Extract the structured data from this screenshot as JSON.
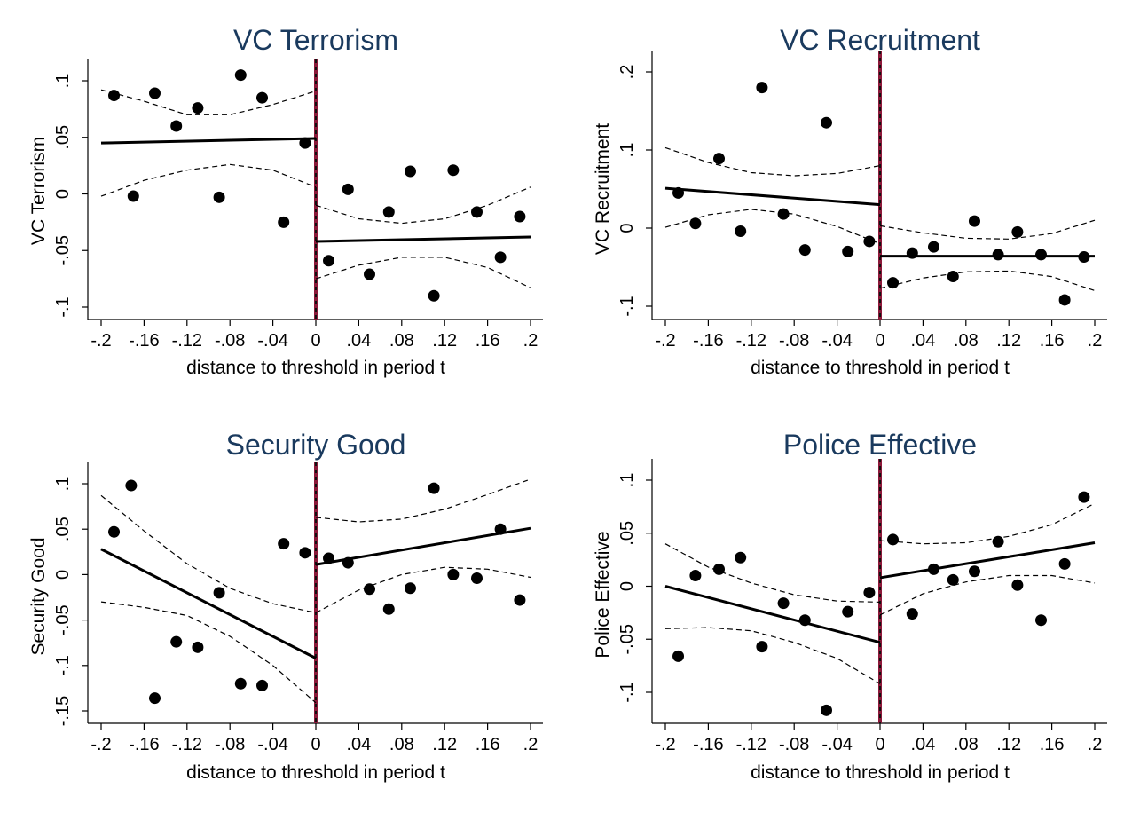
{
  "chart_data": [
    {
      "type": "scatter",
      "title": "VC Terrorism",
      "xlabel": "distance to threshold in period t",
      "ylabel": "VC Terrorism",
      "xlim": [
        -0.2,
        0.2
      ],
      "ylim": [
        -0.1,
        0.1
      ],
      "x_ticks": [
        -0.2,
        -0.16,
        -0.12,
        -0.08,
        -0.04,
        0,
        0.04,
        0.08,
        0.12,
        0.16,
        0.2
      ],
      "x_tick_labels": [
        "-.2",
        "-.16",
        "-.12",
        "-.08",
        "-.04",
        "0",
        ".04",
        ".08",
        ".12",
        ".16",
        ".2"
      ],
      "y_ticks": [
        -0.1,
        -0.05,
        0,
        0.05,
        0.1
      ],
      "y_tick_labels": [
        "-.1",
        "-.05",
        "0",
        ".05",
        ".1"
      ],
      "threshold_x": 0,
      "points": [
        {
          "x": -0.188,
          "y": 0.087
        },
        {
          "x": -0.17,
          "y": -0.002
        },
        {
          "x": -0.15,
          "y": 0.089
        },
        {
          "x": -0.13,
          "y": 0.06
        },
        {
          "x": -0.11,
          "y": 0.076
        },
        {
          "x": -0.09,
          "y": -0.003
        },
        {
          "x": -0.07,
          "y": 0.105
        },
        {
          "x": -0.05,
          "y": 0.085
        },
        {
          "x": -0.03,
          "y": -0.025
        },
        {
          "x": -0.01,
          "y": 0.045
        },
        {
          "x": 0.012,
          "y": -0.059
        },
        {
          "x": 0.03,
          "y": 0.004
        },
        {
          "x": 0.05,
          "y": -0.071
        },
        {
          "x": 0.068,
          "y": -0.016
        },
        {
          "x": 0.088,
          "y": 0.02
        },
        {
          "x": 0.11,
          "y": -0.09
        },
        {
          "x": 0.128,
          "y": 0.021
        },
        {
          "x": 0.15,
          "y": -0.016
        },
        {
          "x": 0.172,
          "y": -0.056
        },
        {
          "x": 0.19,
          "y": -0.02
        }
      ],
      "fit_left": [
        [
          -0.2,
          0.045
        ],
        [
          0,
          0.049
        ]
      ],
      "fit_right": [
        [
          0,
          -0.042
        ],
        [
          0.2,
          -0.038
        ]
      ],
      "ci_left_upper": [
        [
          -0.2,
          0.092
        ],
        [
          -0.16,
          0.082
        ],
        [
          -0.12,
          0.07
        ],
        [
          -0.08,
          0.07
        ],
        [
          -0.04,
          0.079
        ],
        [
          0,
          0.091
        ]
      ],
      "ci_left_lower": [
        [
          -0.2,
          -0.002
        ],
        [
          -0.16,
          0.012
        ],
        [
          -0.12,
          0.021
        ],
        [
          -0.08,
          0.026
        ],
        [
          -0.04,
          0.021
        ],
        [
          0,
          0.006
        ]
      ],
      "ci_right_upper": [
        [
          0,
          -0.01
        ],
        [
          0.04,
          -0.022
        ],
        [
          0.08,
          -0.026
        ],
        [
          0.12,
          -0.022
        ],
        [
          0.16,
          -0.01
        ],
        [
          0.2,
          0.006
        ]
      ],
      "ci_right_lower": [
        [
          0,
          -0.075
        ],
        [
          0.04,
          -0.063
        ],
        [
          0.08,
          -0.056
        ],
        [
          0.12,
          -0.056
        ],
        [
          0.16,
          -0.065
        ],
        [
          0.2,
          -0.083
        ]
      ]
    },
    {
      "type": "scatter",
      "title": "VC Recruitment",
      "xlabel": "distance to threshold in period t",
      "ylabel": "VC Recruitment",
      "xlim": [
        -0.2,
        0.2
      ],
      "ylim": [
        -0.1,
        0.2
      ],
      "x_ticks": [
        -0.2,
        -0.16,
        -0.12,
        -0.08,
        -0.04,
        0,
        0.04,
        0.08,
        0.12,
        0.16,
        0.2
      ],
      "x_tick_labels": [
        "-.2",
        "-.16",
        "-.12",
        "-.08",
        "-.04",
        "0",
        ".04",
        ".08",
        ".12",
        ".16",
        ".2"
      ],
      "y_ticks": [
        -0.1,
        0,
        0.1,
        0.2
      ],
      "y_tick_labels": [
        "-.1",
        "0",
        ".1",
        ".2"
      ],
      "threshold_x": 0,
      "points": [
        {
          "x": -0.188,
          "y": 0.045
        },
        {
          "x": -0.172,
          "y": 0.006
        },
        {
          "x": -0.15,
          "y": 0.089
        },
        {
          "x": -0.13,
          "y": -0.004
        },
        {
          "x": -0.11,
          "y": 0.18
        },
        {
          "x": -0.09,
          "y": 0.018
        },
        {
          "x": -0.07,
          "y": -0.028
        },
        {
          "x": -0.05,
          "y": 0.135
        },
        {
          "x": -0.03,
          "y": -0.03
        },
        {
          "x": -0.01,
          "y": -0.017
        },
        {
          "x": 0.012,
          "y": -0.07
        },
        {
          "x": 0.03,
          "y": -0.032
        },
        {
          "x": 0.05,
          "y": -0.024
        },
        {
          "x": 0.068,
          "y": -0.062
        },
        {
          "x": 0.088,
          "y": 0.009
        },
        {
          "x": 0.11,
          "y": -0.034
        },
        {
          "x": 0.128,
          "y": -0.005
        },
        {
          "x": 0.15,
          "y": -0.034
        },
        {
          "x": 0.172,
          "y": -0.092
        },
        {
          "x": 0.19,
          "y": -0.037
        }
      ],
      "fit_left": [
        [
          -0.2,
          0.051
        ],
        [
          0,
          0.03
        ]
      ],
      "fit_right": [
        [
          0,
          -0.036
        ],
        [
          0.2,
          -0.036
        ]
      ],
      "ci_left_upper": [
        [
          -0.2,
          0.103
        ],
        [
          -0.16,
          0.084
        ],
        [
          -0.12,
          0.071
        ],
        [
          -0.08,
          0.067
        ],
        [
          -0.04,
          0.07
        ],
        [
          0,
          0.08
        ]
      ],
      "ci_left_lower": [
        [
          -0.2,
          0.001
        ],
        [
          -0.16,
          0.017
        ],
        [
          -0.12,
          0.024
        ],
        [
          -0.08,
          0.018
        ],
        [
          -0.04,
          0.002
        ],
        [
          0,
          -0.02
        ]
      ],
      "ci_right_upper": [
        [
          0,
          0.003
        ],
        [
          0.04,
          -0.006
        ],
        [
          0.08,
          -0.013
        ],
        [
          0.12,
          -0.014
        ],
        [
          0.16,
          -0.007
        ],
        [
          0.2,
          0.01
        ]
      ],
      "ci_right_lower": [
        [
          0,
          -0.077
        ],
        [
          0.04,
          -0.064
        ],
        [
          0.08,
          -0.056
        ],
        [
          0.12,
          -0.055
        ],
        [
          0.16,
          -0.062
        ],
        [
          0.2,
          -0.08
        ]
      ]
    },
    {
      "type": "scatter",
      "title": "Security Good",
      "xlabel": "distance to threshold in period t",
      "ylabel": "Security Good",
      "xlim": [
        -0.2,
        0.2
      ],
      "ylim": [
        -0.15,
        0.1
      ],
      "x_ticks": [
        -0.2,
        -0.16,
        -0.12,
        -0.08,
        -0.04,
        0,
        0.04,
        0.08,
        0.12,
        0.16,
        0.2
      ],
      "x_tick_labels": [
        "-.2",
        "-.16",
        "-.12",
        "-.08",
        "-.04",
        "0",
        ".04",
        ".08",
        ".12",
        ".16",
        ".2"
      ],
      "y_ticks": [
        -0.15,
        -0.1,
        -0.05,
        0,
        0.05,
        0.1
      ],
      "y_tick_labels": [
        "-.15",
        "-.1",
        "-.05",
        "0",
        ".05",
        ".1"
      ],
      "threshold_x": 0,
      "points": [
        {
          "x": -0.188,
          "y": 0.047
        },
        {
          "x": -0.172,
          "y": 0.098
        },
        {
          "x": -0.15,
          "y": -0.136
        },
        {
          "x": -0.13,
          "y": -0.074
        },
        {
          "x": -0.11,
          "y": -0.08
        },
        {
          "x": -0.09,
          "y": -0.02
        },
        {
          "x": -0.07,
          "y": -0.12
        },
        {
          "x": -0.05,
          "y": -0.122
        },
        {
          "x": -0.03,
          "y": 0.034
        },
        {
          "x": -0.01,
          "y": 0.024
        },
        {
          "x": 0.012,
          "y": 0.018
        },
        {
          "x": 0.03,
          "y": 0.013
        },
        {
          "x": 0.05,
          "y": -0.016
        },
        {
          "x": 0.068,
          "y": -0.038
        },
        {
          "x": 0.088,
          "y": -0.015
        },
        {
          "x": 0.11,
          "y": 0.095
        },
        {
          "x": 0.128,
          "y": 0.0
        },
        {
          "x": 0.15,
          "y": -0.004
        },
        {
          "x": 0.172,
          "y": 0.05
        },
        {
          "x": 0.19,
          "y": -0.028
        }
      ],
      "fit_left": [
        [
          -0.2,
          0.028
        ],
        [
          0,
          -0.092
        ]
      ],
      "fit_right": [
        [
          0,
          0.011
        ],
        [
          0.2,
          0.051
        ]
      ],
      "ci_left_upper": [
        [
          -0.2,
          0.087
        ],
        [
          -0.16,
          0.048
        ],
        [
          -0.12,
          0.012
        ],
        [
          -0.08,
          -0.015
        ],
        [
          -0.04,
          -0.032
        ],
        [
          0,
          -0.042
        ]
      ],
      "ci_left_lower": [
        [
          -0.2,
          -0.03
        ],
        [
          -0.16,
          -0.036
        ],
        [
          -0.12,
          -0.045
        ],
        [
          -0.08,
          -0.068
        ],
        [
          -0.04,
          -0.1
        ],
        [
          0,
          -0.141
        ]
      ],
      "ci_right_upper": [
        [
          0,
          0.063
        ],
        [
          0.04,
          0.058
        ],
        [
          0.08,
          0.061
        ],
        [
          0.12,
          0.072
        ],
        [
          0.16,
          0.088
        ],
        [
          0.2,
          0.105
        ]
      ],
      "ci_right_lower": [
        [
          0,
          -0.042
        ],
        [
          0.04,
          -0.017
        ],
        [
          0.08,
          0.0
        ],
        [
          0.12,
          0.008
        ],
        [
          0.16,
          0.006
        ],
        [
          0.2,
          -0.003
        ]
      ]
    },
    {
      "type": "scatter",
      "title": "Police Effective",
      "xlabel": "distance to threshold in period t",
      "ylabel": "Police Effective",
      "xlim": [
        -0.2,
        0.2
      ],
      "ylim": [
        -0.1,
        0.1
      ],
      "x_ticks": [
        -0.2,
        -0.16,
        -0.12,
        -0.08,
        -0.04,
        0,
        0.04,
        0.08,
        0.12,
        0.16,
        0.2
      ],
      "x_tick_labels": [
        "-.2",
        "-.16",
        "-.12",
        "-.08",
        "-.04",
        "0",
        ".04",
        ".08",
        ".12",
        ".16",
        ".2"
      ],
      "y_ticks": [
        -0.1,
        -0.05,
        0,
        0.05,
        0.1
      ],
      "y_tick_labels": [
        "-.1",
        "-.05",
        "0",
        ".05",
        ".1"
      ],
      "threshold_x": 0,
      "points": [
        {
          "x": -0.188,
          "y": -0.066
        },
        {
          "x": -0.172,
          "y": 0.01
        },
        {
          "x": -0.15,
          "y": 0.016
        },
        {
          "x": -0.13,
          "y": 0.027
        },
        {
          "x": -0.11,
          "y": -0.057
        },
        {
          "x": -0.09,
          "y": -0.016
        },
        {
          "x": -0.07,
          "y": -0.032
        },
        {
          "x": -0.05,
          "y": -0.117
        },
        {
          "x": -0.03,
          "y": -0.024
        },
        {
          "x": -0.01,
          "y": -0.006
        },
        {
          "x": 0.012,
          "y": 0.044
        },
        {
          "x": 0.03,
          "y": -0.026
        },
        {
          "x": 0.05,
          "y": 0.016
        },
        {
          "x": 0.068,
          "y": 0.006
        },
        {
          "x": 0.088,
          "y": 0.014
        },
        {
          "x": 0.11,
          "y": 0.042
        },
        {
          "x": 0.128,
          "y": 0.001
        },
        {
          "x": 0.15,
          "y": -0.032
        },
        {
          "x": 0.172,
          "y": 0.021
        },
        {
          "x": 0.19,
          "y": 0.084
        }
      ],
      "fit_left": [
        [
          -0.2,
          0.0
        ],
        [
          0,
          -0.053
        ]
      ],
      "fit_right": [
        [
          0,
          0.008
        ],
        [
          0.2,
          0.041
        ]
      ],
      "ci_left_upper": [
        [
          -0.2,
          0.04
        ],
        [
          -0.16,
          0.018
        ],
        [
          -0.12,
          0.003
        ],
        [
          -0.08,
          -0.008
        ],
        [
          -0.04,
          -0.014
        ],
        [
          0,
          -0.015
        ]
      ],
      "ci_left_lower": [
        [
          -0.2,
          -0.04
        ],
        [
          -0.16,
          -0.039
        ],
        [
          -0.12,
          -0.042
        ],
        [
          -0.08,
          -0.053
        ],
        [
          -0.04,
          -0.068
        ],
        [
          0,
          -0.092
        ]
      ],
      "ci_right_upper": [
        [
          0,
          0.043
        ],
        [
          0.04,
          0.04
        ],
        [
          0.08,
          0.041
        ],
        [
          0.12,
          0.047
        ],
        [
          0.16,
          0.058
        ],
        [
          0.2,
          0.078
        ]
      ],
      "ci_right_lower": [
        [
          0,
          -0.027
        ],
        [
          0.04,
          -0.007
        ],
        [
          0.08,
          0.004
        ],
        [
          0.12,
          0.01
        ],
        [
          0.16,
          0.01
        ],
        [
          0.2,
          0.003
        ]
      ]
    }
  ]
}
